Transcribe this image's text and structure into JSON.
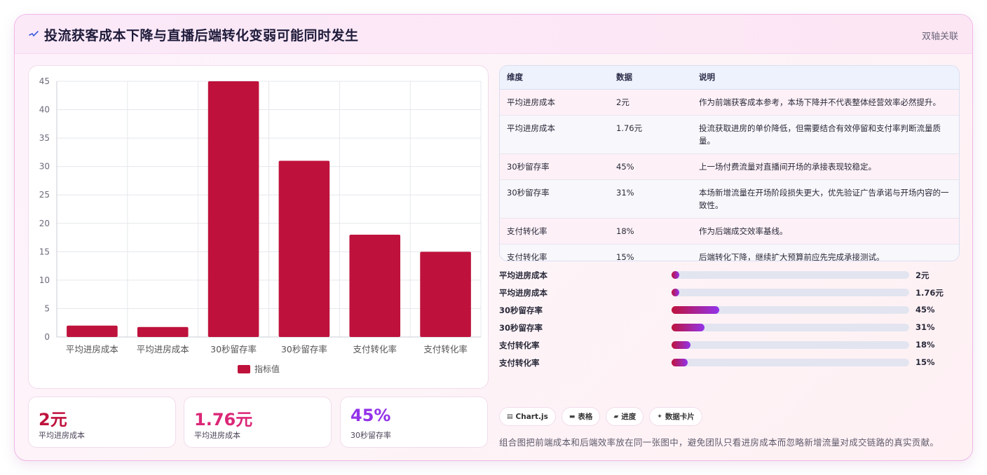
{
  "header": {
    "title": "投流获客成本下降与直播后端转化变弱可能同时发生",
    "tag": "双轴关联",
    "icon": "pulse-icon"
  },
  "chart_data": {
    "type": "bar",
    "categories": [
      "平均进房成本",
      "平均进房成本",
      "30秒留存率",
      "30秒留存率",
      "支付转化率",
      "支付转化率"
    ],
    "series": [
      {
        "name": "指标值",
        "values": [
          2,
          1.76,
          45,
          31,
          18,
          15
        ],
        "color": "#be123c"
      }
    ],
    "ylim": [
      0,
      45
    ],
    "yticks": [
      0,
      5,
      10,
      15,
      20,
      25,
      30,
      35,
      40,
      45
    ],
    "grid": true,
    "legend": "bottom"
  },
  "stats": [
    {
      "value": "2元",
      "label": "平均进房成本",
      "color": "#be123c"
    },
    {
      "value": "1.76元",
      "label": "平均进房成本",
      "color": "#db2777"
    },
    {
      "value": "45%",
      "label": "30秒留存率",
      "color": "#9333ea"
    }
  ],
  "table": {
    "headers": [
      "维度",
      "数据",
      "说明"
    ],
    "rows": [
      [
        "平均进房成本",
        "2元",
        "作为前端获客成本参考，本场下降并不代表整体经营效率必然提升。"
      ],
      [
        "平均进房成本",
        "1.76元",
        "投流获取进房的单价降低，但需要结合有效停留和支付率判断流量质量。"
      ],
      [
        "30秒留存率",
        "45%",
        "上一场付费流量对直播间开场的承接表现较稳定。"
      ],
      [
        "30秒留存率",
        "31%",
        "本场新增流量在开场阶段损失更大，优先验证广告承诺与开场内容的一致性。"
      ],
      [
        "支付转化率",
        "18%",
        "作为后端成交效率基线。"
      ],
      [
        "支付转化率",
        "15%",
        "后端转化下降，继续扩大预算前应先完成承接测试。"
      ]
    ]
  },
  "progress": [
    {
      "label": "平均进房成本",
      "value": "2元",
      "fraction": 0.02
    },
    {
      "label": "平均进房成本",
      "value": "1.76元",
      "fraction": 0.0176
    },
    {
      "label": "30秒留存率",
      "value": "45%",
      "fraction": 0.45
    },
    {
      "label": "30秒留存率",
      "value": "31%",
      "fraction": 0.31
    },
    {
      "label": "支付转化率",
      "value": "18%",
      "fraction": 0.18
    },
    {
      "label": "支付转化率",
      "value": "15%",
      "fraction": 0.15
    }
  ],
  "chips": [
    {
      "icon": "chart-icon",
      "glyph": "▤",
      "label": "Chart.js"
    },
    {
      "icon": "table-icon",
      "glyph": "▬",
      "label": "表格"
    },
    {
      "icon": "progress-icon",
      "glyph": "▰",
      "label": "进度"
    },
    {
      "icon": "sparkle-icon",
      "glyph": "✦",
      "label": "数据卡片"
    }
  ],
  "footnote": "组合图把前端成本和后端效率放在同一张图中，避免团队只看进房成本而忽略新增流量对成交链路的真实贡献。"
}
